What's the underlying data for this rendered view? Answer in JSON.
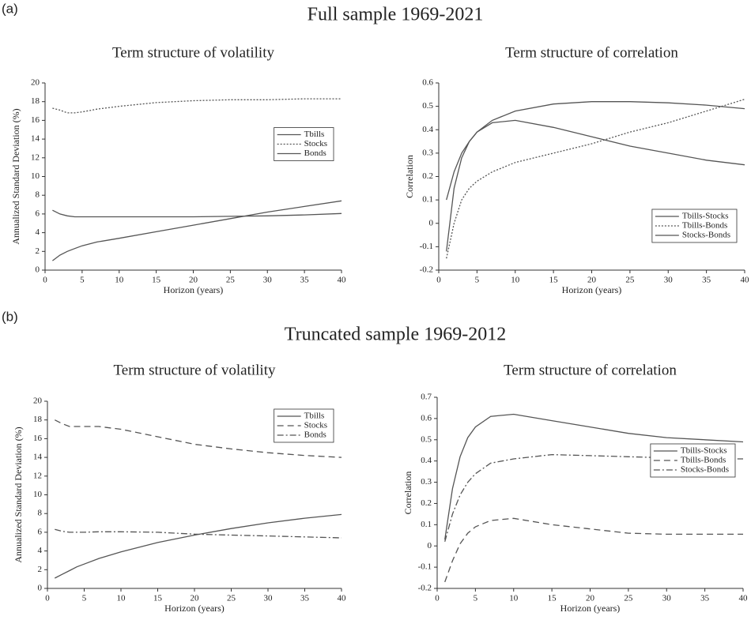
{
  "panels": [
    {
      "label": "(a)",
      "title": "Full sample 1969-2021"
    },
    {
      "label": "(b)",
      "title": "Truncated sample 1969-2012"
    }
  ],
  "chart_data": [
    {
      "type": "line",
      "title": "Term structure of volatility",
      "xlabel": "Horizon (years)",
      "ylabel": "Annualized Standard Deviation (%)",
      "x": [
        1,
        2,
        3,
        4,
        5,
        7,
        10,
        15,
        20,
        25,
        30,
        35,
        40
      ],
      "series": [
        {
          "name": "Tbills",
          "color": "#555555",
          "dash": "solid",
          "values": [
            1.0,
            1.6,
            2.0,
            2.3,
            2.6,
            3.0,
            3.4,
            4.1,
            4.8,
            5.5,
            6.2,
            6.8,
            7.4
          ]
        },
        {
          "name": "Stocks",
          "color": "#555555",
          "dash": "dotted",
          "values": [
            17.3,
            17.1,
            16.8,
            16.8,
            16.9,
            17.2,
            17.5,
            17.9,
            18.1,
            18.2,
            18.2,
            18.3,
            18.3
          ]
        },
        {
          "name": "Bonds",
          "color": "#555555",
          "dash": "solid",
          "values": [
            6.4,
            6.0,
            5.8,
            5.7,
            5.7,
            5.7,
            5.7,
            5.7,
            5.7,
            5.75,
            5.8,
            5.9,
            6.05
          ]
        }
      ],
      "xlim": [
        0,
        40
      ],
      "xticks": [
        0,
        5,
        10,
        15,
        20,
        25,
        30,
        35,
        40
      ],
      "ylim": [
        0,
        20
      ],
      "yticks": [
        0,
        2,
        4,
        6,
        8,
        10,
        12,
        14,
        16,
        18,
        20
      ],
      "legend": "center right"
    },
    {
      "type": "line",
      "title": "Term structure of correlation",
      "xlabel": "Horizon (years)",
      "ylabel": "Correlation",
      "x": [
        1,
        2,
        3,
        4,
        5,
        7,
        10,
        15,
        20,
        25,
        30,
        35,
        40
      ],
      "series": [
        {
          "name": "Tbills-Stocks",
          "color": "#555555",
          "dash": "solid",
          "values": [
            -0.12,
            0.15,
            0.28,
            0.35,
            0.39,
            0.43,
            0.44,
            0.41,
            0.37,
            0.33,
            0.3,
            0.27,
            0.25
          ]
        },
        {
          "name": "Tbills-Bonds",
          "color": "#555555",
          "dash": "dotted",
          "values": [
            -0.15,
            0.0,
            0.1,
            0.15,
            0.18,
            0.22,
            0.26,
            0.3,
            0.34,
            0.39,
            0.43,
            0.48,
            0.53
          ]
        },
        {
          "name": "Stocks-Bonds",
          "color": "#555555",
          "dash": "solid",
          "values": [
            0.1,
            0.22,
            0.3,
            0.35,
            0.39,
            0.44,
            0.48,
            0.51,
            0.52,
            0.52,
            0.515,
            0.505,
            0.49
          ]
        }
      ],
      "xlim": [
        0,
        40
      ],
      "xticks": [
        0,
        5,
        10,
        15,
        20,
        25,
        30,
        35,
        40
      ],
      "ylim": [
        -0.2,
        0.6
      ],
      "yticks": [
        -0.2,
        -0.1,
        0,
        0.1,
        0.2,
        0.3,
        0.4,
        0.5,
        0.6
      ],
      "legend": "lower right"
    },
    {
      "type": "line",
      "title": "Term structure of volatility",
      "xlabel": "Horizon (years)",
      "ylabel": "Annualized Standard Deviation (%)",
      "x": [
        1,
        2,
        3,
        4,
        5,
        7,
        10,
        15,
        20,
        25,
        30,
        35,
        40
      ],
      "series": [
        {
          "name": "Tbills",
          "color": "#555555",
          "dash": "solid",
          "values": [
            1.1,
            1.5,
            1.9,
            2.3,
            2.6,
            3.2,
            3.9,
            4.9,
            5.7,
            6.4,
            7.0,
            7.5,
            7.9
          ]
        },
        {
          "name": "Stocks",
          "color": "#555555",
          "dash": "dashed",
          "values": [
            18.0,
            17.6,
            17.3,
            17.3,
            17.3,
            17.3,
            17.0,
            16.2,
            15.4,
            14.9,
            14.5,
            14.2,
            14.0
          ]
        },
        {
          "name": "Bonds",
          "color": "#555555",
          "dash": "dashdot",
          "values": [
            6.3,
            6.1,
            6.0,
            6.0,
            6.0,
            6.05,
            6.05,
            6.0,
            5.8,
            5.7,
            5.6,
            5.5,
            5.4
          ]
        }
      ],
      "xlim": [
        0,
        40
      ],
      "xticks": [
        0,
        5,
        10,
        15,
        20,
        25,
        30,
        35,
        40
      ],
      "ylim": [
        0,
        20
      ],
      "yticks": [
        0,
        2,
        4,
        6,
        8,
        10,
        12,
        14,
        16,
        18,
        20
      ],
      "legend": "upper right"
    },
    {
      "type": "line",
      "title": "Term structure of correlation",
      "xlabel": "Horizon (years)",
      "ylabel": "Correlation",
      "x": [
        1,
        2,
        3,
        4,
        5,
        7,
        10,
        15,
        20,
        25,
        30,
        35,
        40
      ],
      "series": [
        {
          "name": "Tbills-Stocks",
          "color": "#555555",
          "dash": "solid",
          "values": [
            0.03,
            0.27,
            0.42,
            0.51,
            0.56,
            0.61,
            0.62,
            0.59,
            0.56,
            0.53,
            0.51,
            0.5,
            0.49
          ]
        },
        {
          "name": "Tbills-Bonds",
          "color": "#555555",
          "dash": "dashed",
          "values": [
            -0.17,
            -0.07,
            0.01,
            0.06,
            0.09,
            0.12,
            0.13,
            0.1,
            0.08,
            0.06,
            0.055,
            0.055,
            0.055
          ]
        },
        {
          "name": "Stocks-Bonds",
          "color": "#555555",
          "dash": "dashdot",
          "values": [
            0.02,
            0.15,
            0.24,
            0.3,
            0.34,
            0.39,
            0.41,
            0.43,
            0.425,
            0.42,
            0.415,
            0.41,
            0.41
          ]
        }
      ],
      "xlim": [
        0,
        40
      ],
      "xticks": [
        0,
        5,
        10,
        15,
        20,
        25,
        30,
        35,
        40
      ],
      "ylim": [
        -0.2,
        0.7
      ],
      "yticks": [
        -0.2,
        -0.1,
        0,
        0.1,
        0.2,
        0.3,
        0.4,
        0.5,
        0.6,
        0.7
      ],
      "legend": "center right"
    }
  ]
}
